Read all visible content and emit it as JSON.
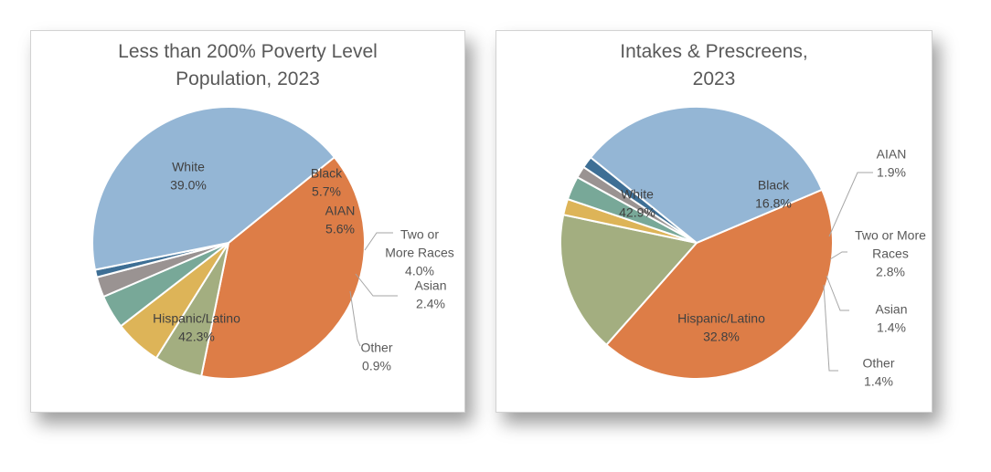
{
  "chart_data": [
    {
      "type": "pie",
      "title": "Less than 200% Poverty Level\nPopulation, 2023",
      "slices": [
        {
          "label": "White",
          "value": 39.0,
          "value_label": "39.0%",
          "color": "#DD7D47"
        },
        {
          "label": "Black",
          "value": 5.7,
          "value_label": "5.7%",
          "color": "#A3AE80"
        },
        {
          "label": "AIAN",
          "value": 5.6,
          "value_label": "5.6%",
          "color": "#DDB458"
        },
        {
          "label": "Two or More Races",
          "value": 4.0,
          "value_label": "4.0%",
          "color": "#78A898"
        },
        {
          "label": "Asian",
          "value": 2.4,
          "value_label": "2.4%",
          "color": "#9A9392"
        },
        {
          "label": "Other",
          "value": 0.9,
          "value_label": "0.9%",
          "color": "#3E6F95"
        },
        {
          "label": "Hispanic/Latino",
          "value": 42.3,
          "value_label": "42.3%",
          "color": "#94B6D5"
        }
      ]
    },
    {
      "type": "pie",
      "title": "Intakes & Prescreens,\n2023",
      "slices": [
        {
          "label": "White",
          "value": 42.9,
          "value_label": "42.9%",
          "color": "#DD7D47"
        },
        {
          "label": "Black",
          "value": 16.8,
          "value_label": "16.8%",
          "color": "#A3AE80"
        },
        {
          "label": "AIAN",
          "value": 1.9,
          "value_label": "1.9%",
          "color": "#DDB458"
        },
        {
          "label": "Two or More Races",
          "value": 2.8,
          "value_label": "2.8%",
          "color": "#78A898"
        },
        {
          "label": "Asian",
          "value": 1.4,
          "value_label": "1.4%",
          "color": "#9A9392"
        },
        {
          "label": "Other",
          "value": 1.4,
          "value_label": "1.4%",
          "color": "#3E6F95"
        },
        {
          "label": "Hispanic/Latino",
          "value": 32.8,
          "value_label": "32.8%",
          "color": "#94B6D5"
        }
      ]
    }
  ]
}
